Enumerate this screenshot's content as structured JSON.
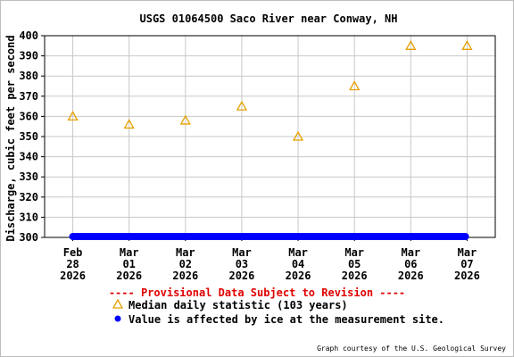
{
  "chart_data": {
    "type": "scatter",
    "title": "USGS 01064500 Saco River near Conway, NH",
    "xlabel": "",
    "ylabel": "Discharge, cubic feet per second",
    "ylim": [
      300,
      400
    ],
    "yticks": [
      300,
      310,
      320,
      330,
      340,
      350,
      360,
      370,
      380,
      390,
      400
    ],
    "xlim": [
      "2026-02-27T12:00",
      "2026-03-07T12:00"
    ],
    "xticks": [
      {
        "date": "2026-02-28",
        "line1": "Feb",
        "line2": "28",
        "line3": "2026"
      },
      {
        "date": "2026-03-01",
        "line1": "Mar",
        "line2": "01",
        "line3": "2026"
      },
      {
        "date": "2026-03-02",
        "line1": "Mar",
        "line2": "02",
        "line3": "2026"
      },
      {
        "date": "2026-03-03",
        "line1": "Mar",
        "line2": "03",
        "line3": "2026"
      },
      {
        "date": "2026-03-04",
        "line1": "Mar",
        "line2": "04",
        "line3": "2026"
      },
      {
        "date": "2026-03-05",
        "line1": "Mar",
        "line2": "05",
        "line3": "2026"
      },
      {
        "date": "2026-03-06",
        "line1": "Mar",
        "line2": "06",
        "line3": "2026"
      },
      {
        "date": "2026-03-07",
        "line1": "Mar",
        "line2": "07",
        "line3": "2026"
      }
    ],
    "grid": true,
    "legend_placement": "bottom",
    "series": [
      {
        "name": "Median daily statistic (103 years)",
        "marker": "triangle-open",
        "color": "#e5a000",
        "points": [
          {
            "x": "2026-02-28",
            "y": 360
          },
          {
            "x": "2026-03-01",
            "y": 356
          },
          {
            "x": "2026-03-02",
            "y": 358
          },
          {
            "x": "2026-03-03",
            "y": 365
          },
          {
            "x": "2026-03-04",
            "y": 350
          },
          {
            "x": "2026-03-05",
            "y": 375
          },
          {
            "x": "2026-03-06",
            "y": 395
          },
          {
            "x": "2026-03-07",
            "y": 395
          }
        ]
      },
      {
        "name": "Value is affected by ice at the measurement site.",
        "marker": "dot",
        "color": "#0000ff",
        "range": {
          "start": "2026-02-28",
          "end": "2026-03-07",
          "y": 300
        }
      }
    ],
    "annotation": "---- Provisional Data Subject to Revision ----",
    "credit": "Graph courtesy of the U.S. Geological Survey"
  }
}
